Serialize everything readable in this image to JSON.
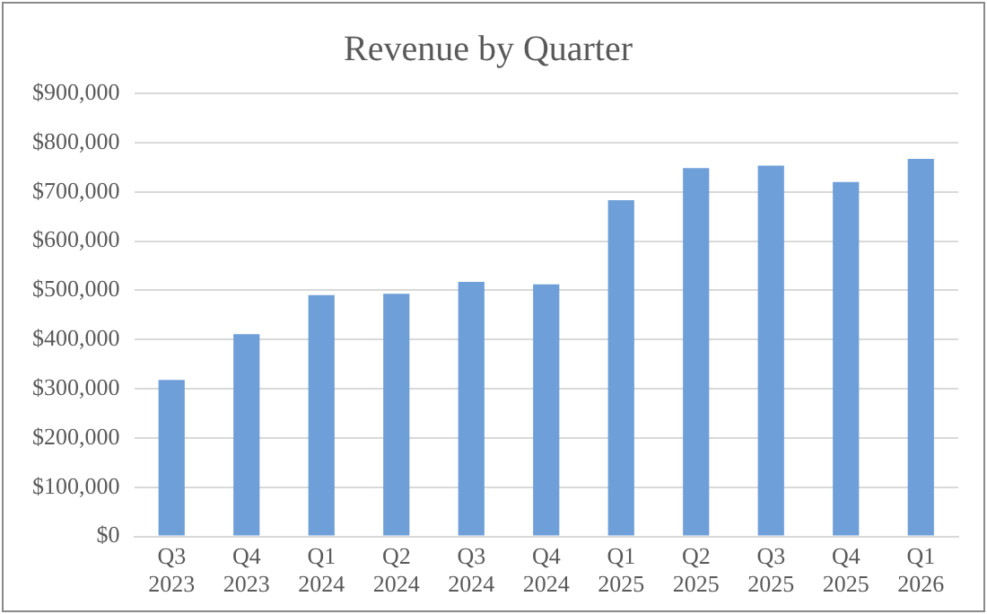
{
  "chart_data": {
    "type": "bar",
    "title": "Revenue by Quarter",
    "categories": [
      "Q3 2023",
      "Q4 2023",
      "Q1 2024",
      "Q2 2024",
      "Q3 2024",
      "Q4 2024",
      "Q1 2025",
      "Q2 2025",
      "Q3 2025",
      "Q4 2025",
      "Q1 2026"
    ],
    "values": [
      318000,
      411000,
      490000,
      493000,
      517000,
      512000,
      683000,
      748000,
      753000,
      720000,
      767000
    ],
    "color": "#6f9fd8",
    "ylim": [
      0,
      900000
    ],
    "yticks": [
      {
        "value": 0,
        "label": "$0"
      },
      {
        "value": 100000,
        "label": "$100,000"
      },
      {
        "value": 200000,
        "label": "$200,000"
      },
      {
        "value": 300000,
        "label": "$300,000"
      },
      {
        "value": 400000,
        "label": "$400,000"
      },
      {
        "value": 500000,
        "label": "$500,000"
      },
      {
        "value": 600000,
        "label": "$600,000"
      },
      {
        "value": 700000,
        "label": "$700,000"
      },
      {
        "value": 800000,
        "label": "$800,000"
      },
      {
        "value": 900000,
        "label": "$900,000"
      }
    ],
    "grid": "y",
    "legend": false
  }
}
